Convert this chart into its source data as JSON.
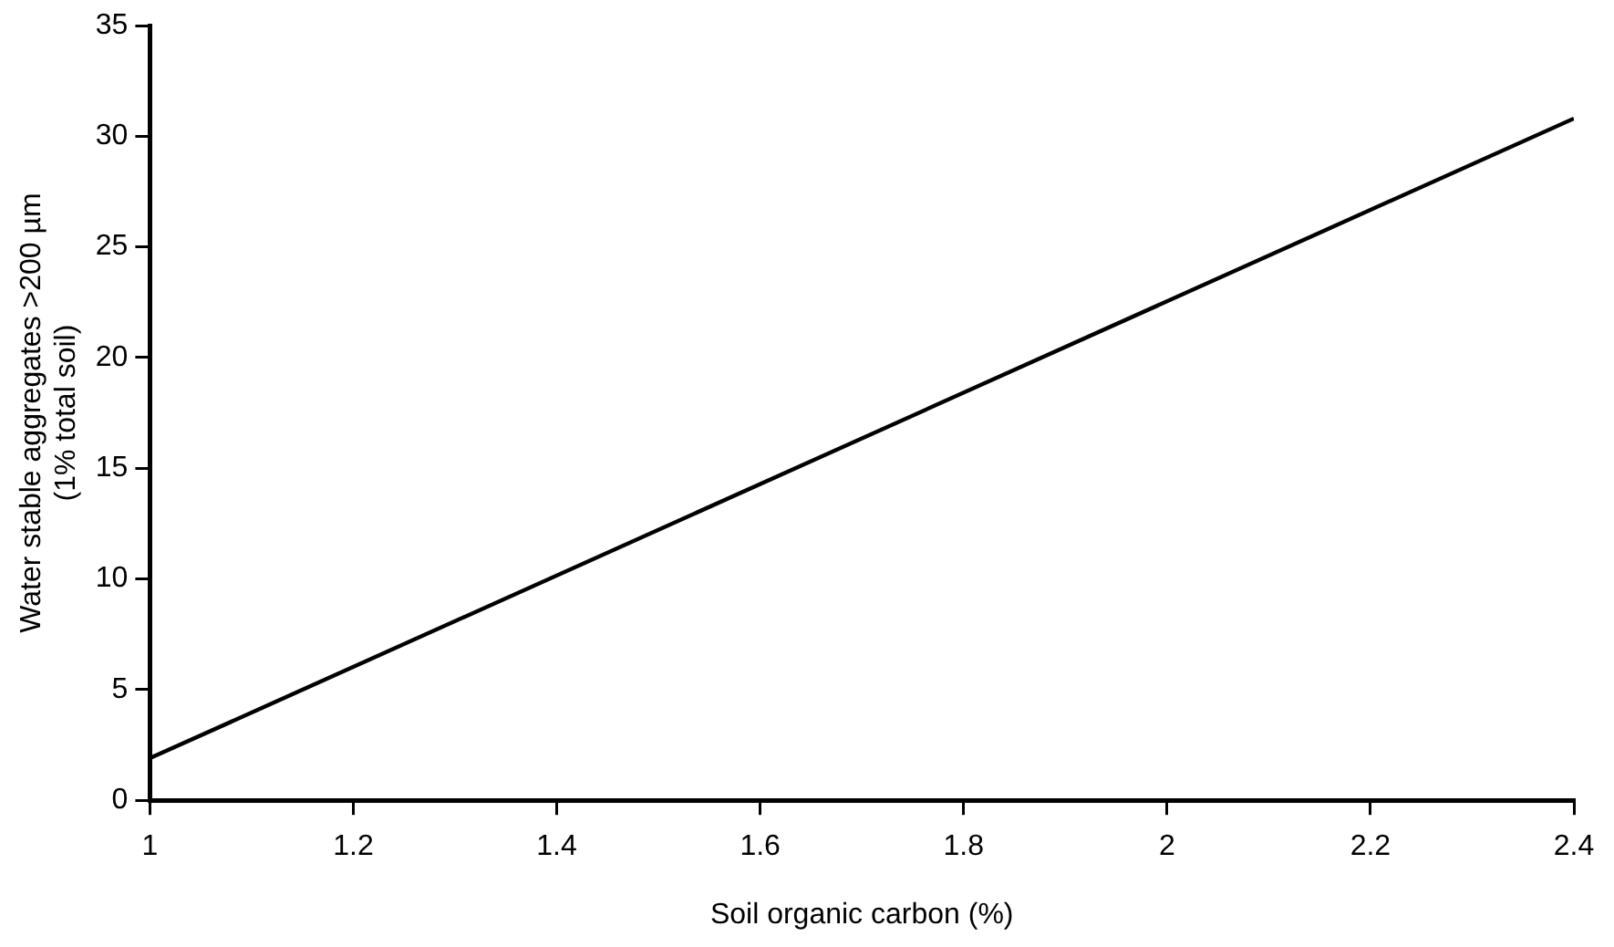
{
  "chart_data": {
    "type": "line",
    "xlabel": "Soil organic carbon (%)",
    "ylabel": "Water stable aggregates >200 µm\n(1% total soil)",
    "x": [
      1,
      2.4
    ],
    "series": [
      {
        "color": "#000000",
        "values": [
          1.9,
          30.8
        ]
      }
    ],
    "xlim": [
      1,
      2.4
    ],
    "xticks": [
      1,
      1.2,
      1.4,
      1.6,
      1.8,
      2,
      2.2,
      2.4
    ],
    "ylim": [
      0,
      35
    ],
    "yticks": [
      0,
      5,
      10,
      15,
      20,
      25,
      30,
      35
    ],
    "grid": false,
    "legend": false,
    "marker": "none",
    "line_style": "solid"
  }
}
